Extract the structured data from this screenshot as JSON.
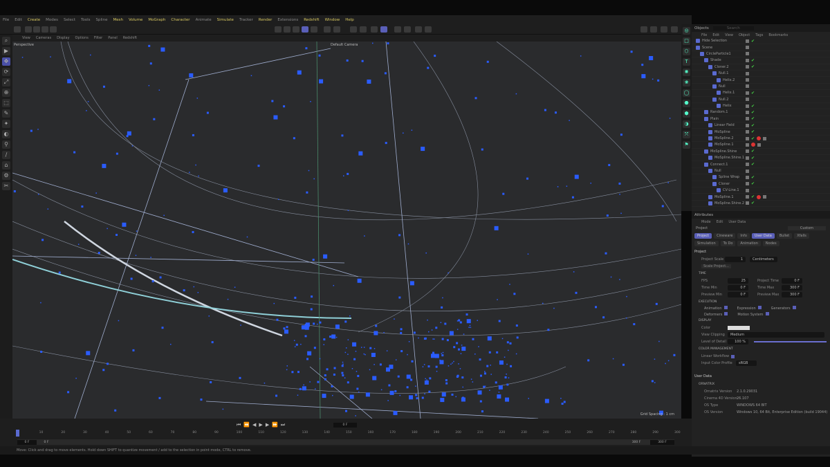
{
  "menu": [
    {
      "label": "File"
    },
    {
      "label": "Edit"
    },
    {
      "label": "Create",
      "hl": true
    },
    {
      "label": "Modes"
    },
    {
      "label": "Select"
    },
    {
      "label": "Tools"
    },
    {
      "label": "Spline"
    },
    {
      "label": "Mesh",
      "hl": true
    },
    {
      "label": "Volume",
      "hl": true
    },
    {
      "label": "MoGraph",
      "hl": true
    },
    {
      "label": "Character",
      "hl": true
    },
    {
      "label": "Animate"
    },
    {
      "label": "Simulate",
      "hl": true
    },
    {
      "label": "Tracker"
    },
    {
      "label": "Render",
      "hl": true
    },
    {
      "label": "Extensions"
    },
    {
      "label": "Redshift",
      "hl": true
    },
    {
      "label": "Window",
      "hl": true
    },
    {
      "label": "Help",
      "hl": true
    }
  ],
  "viewport_menu": [
    "View",
    "Cameras",
    "Display",
    "Options",
    "Filter",
    "Panel",
    "Redshift"
  ],
  "viewport": {
    "view_name": "Perspective",
    "camera": "Default Camera",
    "grid_spacing": "Grid Spacing : 1 cm"
  },
  "objects": {
    "title": "Objects",
    "search_placeholder": "Search",
    "menu": [
      "File",
      "Edit",
      "View",
      "Object",
      "Tags",
      "Bookmarks"
    ],
    "items": [
      {
        "name": "Hide Selection",
        "depth": 0,
        "checked": true
      },
      {
        "name": "Scene",
        "depth": 0,
        "checked": false
      },
      {
        "name": "CircleParticle1",
        "depth": 1,
        "checked": false
      },
      {
        "name": "Shade",
        "depth": 2,
        "checked": true
      },
      {
        "name": "Cloner.2",
        "depth": 3,
        "checked": true
      },
      {
        "name": "Null.1",
        "depth": 4,
        "checked": false
      },
      {
        "name": "Helix.2",
        "depth": 5,
        "checked": false
      },
      {
        "name": "Null",
        "depth": 4,
        "checked": false
      },
      {
        "name": "Helix.1",
        "depth": 5,
        "checked": true
      },
      {
        "name": "Null.2",
        "depth": 4,
        "checked": false
      },
      {
        "name": "Helix",
        "depth": 5,
        "checked": true
      },
      {
        "name": "Random.1",
        "depth": 2,
        "checked": true
      },
      {
        "name": "Plain",
        "depth": 2,
        "checked": true
      },
      {
        "name": "Linear Field",
        "depth": 3,
        "checked": true
      },
      {
        "name": "MoSpline",
        "depth": 3,
        "checked": true
      },
      {
        "name": "MoSpline.2",
        "depth": 3,
        "checked": true,
        "tags": true
      },
      {
        "name": "MoSpline.1",
        "depth": 3,
        "checked": false,
        "tags": true
      },
      {
        "name": "MoSpline.Shine",
        "depth": 2,
        "checked": true
      },
      {
        "name": "MoSpline.Shine.1",
        "depth": 3,
        "checked": true
      },
      {
        "name": "Connect.1",
        "depth": 2,
        "checked": true
      },
      {
        "name": "Null",
        "depth": 3,
        "checked": false
      },
      {
        "name": "Spline Wrap",
        "depth": 4,
        "checked": true
      },
      {
        "name": "Cloner",
        "depth": 4,
        "checked": true
      },
      {
        "name": "CV-Line.1",
        "depth": 5,
        "checked": false
      },
      {
        "name": "MoSpline.1",
        "depth": 3,
        "checked": true,
        "tags": true
      },
      {
        "name": "MoSpline.Shine.2",
        "depth": 3,
        "checked": true
      }
    ]
  },
  "attributes": {
    "title": "Attributes",
    "menu": [
      "Mode",
      "Edit",
      "User Data"
    ],
    "object": "Project",
    "preset": "Custom",
    "tabs": [
      {
        "label": "Project",
        "active": true
      },
      {
        "label": "Cineware"
      },
      {
        "label": "Info"
      },
      {
        "label": "User Data",
        "active": true
      },
      {
        "label": "Bullet"
      },
      {
        "label": "Xfalls"
      },
      {
        "label": "Simulation"
      },
      {
        "label": "To Do"
      },
      {
        "label": "Animation"
      },
      {
        "label": "Nodes"
      }
    ],
    "section": "Project",
    "project_scale_label": "Project Scale",
    "project_scale": "1",
    "project_scale_unit": "Centimeters",
    "scale_button": "Scale Project...",
    "time": {
      "title": "TIME",
      "fps_label": "FPS",
      "fps": "25",
      "project_time_label": "Project Time",
      "project_time": "0 F",
      "min_label": "Time Min",
      "min": "0 F",
      "max_label": "Time Max",
      "max": "300 F",
      "pmin_label": "Preview Min",
      "pmin": "0 F",
      "pmax_label": "Preview Max",
      "pmax": "300 F"
    },
    "execution": {
      "title": "EXECUTION",
      "items": [
        "Animation",
        "Expression",
        "Generators",
        "Deformers",
        "Motion System"
      ]
    },
    "display": {
      "title": "DISPLAY",
      "color_label": "Color",
      "clipping_label": "View Clipping",
      "clipping": "Medium",
      "lod_label": "Level of Detail",
      "lod": "100 %",
      "lod_value": 100
    },
    "color_mgmt": {
      "title": "COLOR MANAGEMENT",
      "linear_label": "Linear Workflow",
      "profile_label": "Input Color Profile",
      "profile": "sRGB"
    },
    "user_data": {
      "title": "User Data",
      "group": "ORNATRIX",
      "rows": [
        [
          "Ornatrix Version",
          "2.1.0.29031"
        ],
        [
          "Cinema 4D Version",
          "26.107"
        ],
        [
          "OS Type",
          "WINDOWS 64 BIT"
        ],
        [
          "OS Version",
          "Windows 10, 64 Bit, Enterprise Edition (build 19044)"
        ]
      ]
    }
  },
  "timeline": {
    "current_frame": "0 F",
    "start": "0 F",
    "offset": "0 F",
    "end_field": "300 F",
    "end": "300 F",
    "ticks": [
      0,
      10,
      20,
      30,
      40,
      50,
      60,
      70,
      80,
      90,
      100,
      110,
      120,
      130,
      140,
      150,
      160,
      170,
      180,
      190,
      200,
      210,
      220,
      230,
      240,
      250,
      260,
      270,
      280,
      290,
      300
    ]
  },
  "status": "Move: Click and drag to move elements. Hold down SHIFT to quantize movement / add to the selection in point mode, CTRL to remove.",
  "colors": {
    "accent": "#5a5fb8",
    "particles": "#2a5cff",
    "viewport_bg": "#2a2b2d"
  }
}
